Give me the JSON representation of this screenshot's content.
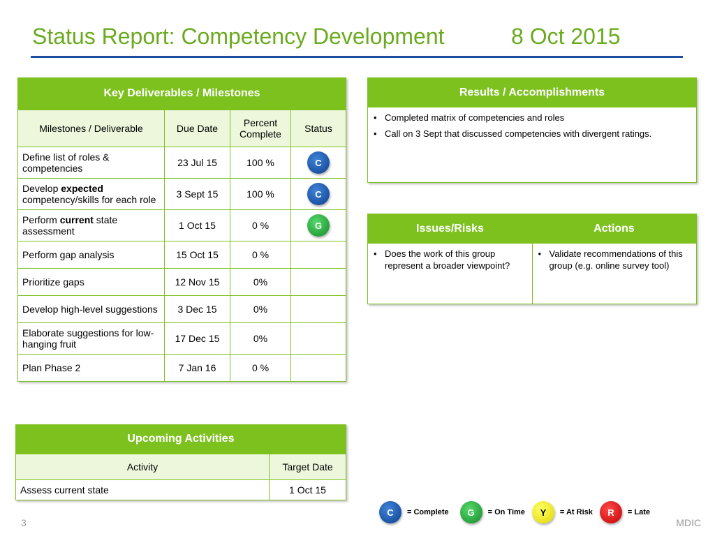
{
  "header": {
    "title": "Status Report: Competency Development",
    "date": "8 Oct 2015"
  },
  "deliverables": {
    "title": "Key Deliverables / Milestones",
    "columns": [
      "Milestones / Deliverable",
      "Due Date",
      "Percent Complete",
      "Status"
    ],
    "rows": [
      {
        "name": "Define list of roles & competencies",
        "due": "23 Jul 15",
        "pct": "100 %",
        "status": "C"
      },
      {
        "name_pre": "Develop ",
        "name_bold": "expected",
        "name_post": " competency/skills for each role",
        "due": "3 Sept 15",
        "pct": "100 %",
        "status": "C"
      },
      {
        "name_pre": "Perform ",
        "name_bold": "current",
        "name_post": " state assessment",
        "due": "1 Oct 15",
        "pct": "0 %",
        "status": "G"
      },
      {
        "name": "Perform gap analysis",
        "due": "15 Oct 15",
        "pct": "0 %",
        "status": ""
      },
      {
        "name": "Prioritize gaps",
        "due": "12 Nov 15",
        "pct": "0%",
        "status": ""
      },
      {
        "name": "Develop high-level suggestions",
        "due": "3 Dec 15",
        "pct": "0%",
        "status": ""
      },
      {
        "name": "Elaborate suggestions for low-hanging fruit",
        "due": "17 Dec 15",
        "pct": "0%",
        "status": ""
      },
      {
        "name": "Plan Phase 2",
        "due": "7 Jan 16",
        "pct": "0 %",
        "status": ""
      }
    ]
  },
  "results": {
    "title": "Results / Accomplishments",
    "items": [
      "Completed matrix of competencies and roles",
      "Call on 3 Sept that discussed competencies with divergent ratings."
    ]
  },
  "issues": {
    "issues_title": "Issues/Risks",
    "actions_title": "Actions",
    "issues": [
      "Does the work of this group represent a broader viewpoint?"
    ],
    "actions": [
      "Validate recommendations of this group (e.g. online survey tool)"
    ]
  },
  "upcoming": {
    "title": "Upcoming Activities",
    "columns": [
      "Activity",
      "Target Date"
    ],
    "rows": [
      {
        "activity": "Assess current state",
        "date": "1 Oct 15"
      }
    ]
  },
  "legend": [
    {
      "letter": "C",
      "label": "= Complete",
      "color": "#1a56b0"
    },
    {
      "letter": "G",
      "label": "= On Time",
      "color": "#22a83a"
    },
    {
      "letter": "Y",
      "label": "= At Risk",
      "color": "#f2ea00"
    },
    {
      "letter": "R",
      "label": "= Late",
      "color": "#e00000"
    }
  ],
  "footer": {
    "page": "3",
    "brand": "MDIC"
  }
}
